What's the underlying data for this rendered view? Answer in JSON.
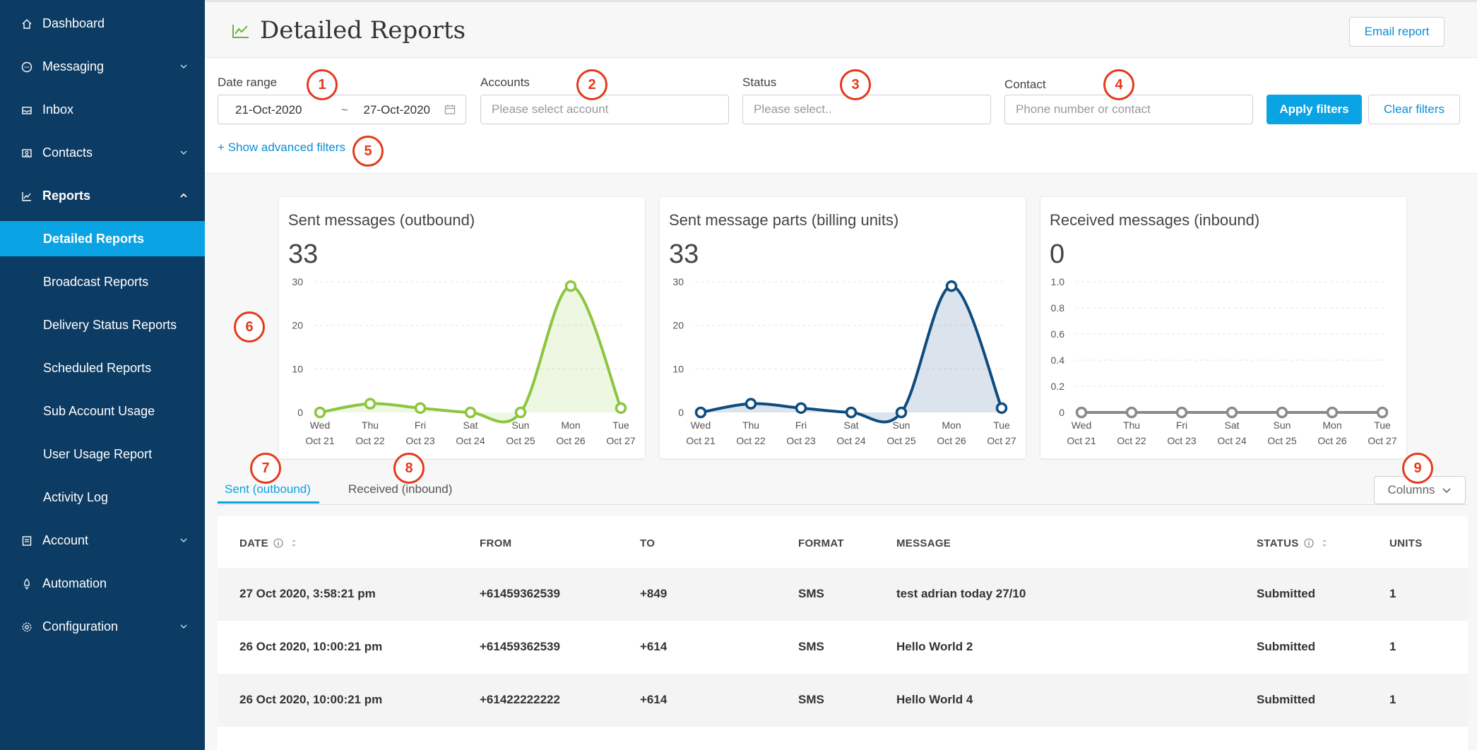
{
  "sidebar": {
    "items": [
      {
        "label": "Dashboard",
        "icon": "home-icon"
      },
      {
        "label": "Messaging",
        "icon": "chat-icon"
      },
      {
        "label": "Inbox",
        "icon": "inbox-icon"
      },
      {
        "label": "Contacts",
        "icon": "contacts-icon"
      },
      {
        "label": "Reports",
        "icon": "chart-icon"
      },
      {
        "label": "Account",
        "icon": "account-icon"
      },
      {
        "label": "Automation",
        "icon": "rocket-icon"
      },
      {
        "label": "Configuration",
        "icon": "gear-icon"
      }
    ],
    "report_subitems": [
      "Detailed Reports",
      "Broadcast Reports",
      "Delivery Status Reports",
      "Scheduled Reports",
      "Sub Account Usage",
      "User Usage Report",
      "Activity Log"
    ]
  },
  "header": {
    "title": "Detailed Reports",
    "email_button": "Email report"
  },
  "filters": {
    "date_range_label": "Date range",
    "date_from": "21-Oct-2020",
    "date_separator": "~",
    "date_to": "27-Oct-2020",
    "accounts_label": "Accounts",
    "accounts_placeholder": "Please select account",
    "status_label": "Status",
    "status_placeholder": "Please select..",
    "contact_label": "Contact",
    "contact_placeholder": "Phone number or contact",
    "apply_button": "Apply filters",
    "clear_button": "Clear filters",
    "advanced_link": "+ Show advanced filters"
  },
  "badges": [
    "1",
    "2",
    "3",
    "4",
    "5",
    "6",
    "7",
    "8",
    "9"
  ],
  "chart_data": [
    {
      "type": "area",
      "title": "Sent messages (outbound)",
      "total": "33",
      "x": [
        [
          "Wed",
          "Oct 21"
        ],
        [
          "Thu",
          "Oct 22"
        ],
        [
          "Fri",
          "Oct 23"
        ],
        [
          "Sat",
          "Oct 24"
        ],
        [
          "Sun",
          "Oct 25"
        ],
        [
          "Mon",
          "Oct 26"
        ],
        [
          "Tue",
          "Oct 27"
        ]
      ],
      "y_ticks": [
        "30",
        "20",
        "10",
        "0"
      ],
      "ylim": [
        0,
        30
      ],
      "values": [
        0,
        2,
        1,
        0,
        0,
        29,
        1
      ],
      "color": "#8cc63f"
    },
    {
      "type": "area",
      "title": "Sent message parts (billing units)",
      "total": "33",
      "x": [
        [
          "Wed",
          "Oct 21"
        ],
        [
          "Thu",
          "Oct 22"
        ],
        [
          "Fri",
          "Oct 23"
        ],
        [
          "Sat",
          "Oct 24"
        ],
        [
          "Sun",
          "Oct 25"
        ],
        [
          "Mon",
          "Oct 26"
        ],
        [
          "Tue",
          "Oct 27"
        ]
      ],
      "y_ticks": [
        "30",
        "20",
        "10",
        "0"
      ],
      "ylim": [
        0,
        30
      ],
      "values": [
        0,
        2,
        1,
        0,
        0,
        29,
        1
      ],
      "color": "#0e4c7f"
    },
    {
      "type": "line",
      "title": "Received messages (inbound)",
      "total": "0",
      "x": [
        [
          "Wed",
          "Oct 21"
        ],
        [
          "Thu",
          "Oct 22"
        ],
        [
          "Fri",
          "Oct 23"
        ],
        [
          "Sat",
          "Oct 24"
        ],
        [
          "Sun",
          "Oct 25"
        ],
        [
          "Mon",
          "Oct 26"
        ],
        [
          "Tue",
          "Oct 27"
        ]
      ],
      "y_ticks": [
        "1.0",
        "0.8",
        "0.6",
        "0.4",
        "0.2",
        "0"
      ],
      "ylim": [
        0,
        1
      ],
      "values": [
        0,
        0,
        0,
        0,
        0,
        0,
        0
      ],
      "color": "#8a8a8a"
    }
  ],
  "tabs": {
    "sent": "Sent (outbound)",
    "received": "Received (inbound)"
  },
  "columns_button": "Columns",
  "table": {
    "headers": [
      "DATE",
      "FROM",
      "TO",
      "FORMAT",
      "MESSAGE",
      "STATUS",
      "UNITS"
    ],
    "rows": [
      [
        "27 Oct 2020, 3:58:21 pm",
        "+61459362539",
        "+849",
        "SMS",
        "test adrian today 27/10",
        "Submitted",
        "1"
      ],
      [
        "26 Oct 2020, 10:00:21 pm",
        "+61459362539",
        "+614",
        "SMS",
        "Hello World 2",
        "Submitted",
        "1"
      ],
      [
        "26 Oct 2020, 10:00:21 pm",
        "+61422222222",
        "+614",
        "SMS",
        "Hello World 4",
        "Submitted",
        "1"
      ]
    ]
  }
}
